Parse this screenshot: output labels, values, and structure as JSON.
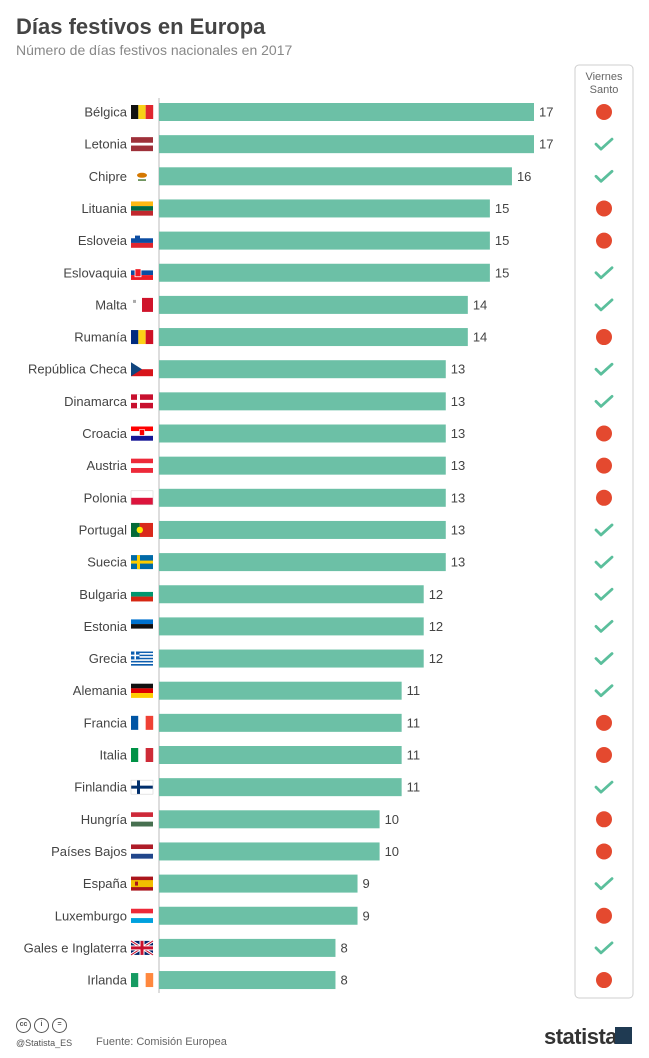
{
  "title": "Días festivos en Europa",
  "subtitle": "Número de días festivos nacionales en 2017",
  "column_header": "Viernes Santo",
  "footer": {
    "handle": "@Statista_ES",
    "source": "Fuente: Comisión Europea",
    "brand": "statista"
  },
  "colors": {
    "bar": "#6cc0a6",
    "check": "#5bbf9c",
    "dot": "#e4492f"
  },
  "chart_data": {
    "type": "bar",
    "orientation": "horizontal",
    "title": "Días festivos en Europa",
    "subtitle": "Número de días festivos nacionales en 2017",
    "categories": [
      "Bélgica",
      "Letonia",
      "Chipre",
      "Lituania",
      "Esloveia",
      "Eslovaquia",
      "Malta",
      "Rumanía",
      "República Checa",
      "Dinamarca",
      "Croacia",
      "Austria",
      "Polonia",
      "Portugal",
      "Suecia",
      "Bulgaria",
      "Estonia",
      "Grecia",
      "Alemania",
      "Francia",
      "Italia",
      "Finlandia",
      "Hungría",
      "Países Bajos",
      "España",
      "Luxemburgo",
      "Gales e Inglaterra",
      "Irlanda"
    ],
    "values": [
      17,
      17,
      16,
      15,
      15,
      15,
      14,
      14,
      13,
      13,
      13,
      13,
      13,
      13,
      13,
      12,
      12,
      12,
      11,
      11,
      11,
      11,
      10,
      10,
      9,
      9,
      8,
      8
    ],
    "viernes_santo": [
      false,
      true,
      true,
      false,
      false,
      true,
      true,
      false,
      true,
      true,
      false,
      false,
      false,
      true,
      true,
      true,
      true,
      true,
      true,
      false,
      false,
      true,
      false,
      false,
      true,
      false,
      true,
      false
    ],
    "flags": [
      "belgium",
      "latvia",
      "cyprus",
      "lithuania",
      "slovenia",
      "slovakia",
      "malta",
      "romania",
      "czech",
      "denmark",
      "croatia",
      "austria",
      "poland",
      "portugal",
      "sweden",
      "bulgaria",
      "estonia",
      "greece",
      "germany",
      "france",
      "italy",
      "finland",
      "hungary",
      "netherlands",
      "spain",
      "luxembourg",
      "uk",
      "ireland"
    ],
    "xlim": [
      0,
      17
    ],
    "grid": false,
    "legend": "none"
  }
}
